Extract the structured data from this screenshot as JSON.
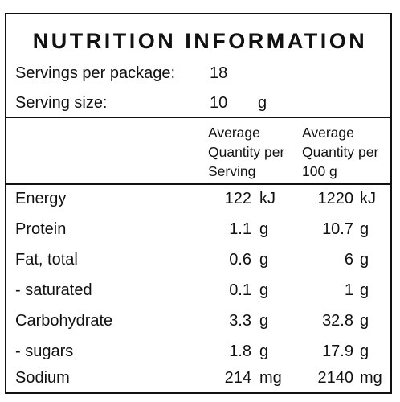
{
  "label": {
    "title": "NUTRITION INFORMATION",
    "servings_per_package": {
      "label": "Servings per package:",
      "value": "18"
    },
    "serving_size": {
      "label": "Serving size:",
      "value": "10",
      "unit": "g"
    },
    "columns": {
      "per_serving": [
        "Average",
        "Quantity per",
        "Serving"
      ],
      "per_100g": [
        "Average",
        "Quantity per",
        "100 g"
      ]
    },
    "rows": [
      {
        "name": "Energy",
        "serving": "122",
        "serving_unit": "kJ",
        "per100": "1220",
        "per100_unit": "kJ"
      },
      {
        "name": "Protein",
        "serving": "1.1",
        "serving_unit": "g",
        "per100": "10.7",
        "per100_unit": "g"
      },
      {
        "name": "Fat, total",
        "serving": "0.6",
        "serving_unit": "g",
        "per100": "6",
        "per100_unit": "g"
      },
      {
        "name": "- saturated",
        "serving": "0.1",
        "serving_unit": "g",
        "per100": "1",
        "per100_unit": "g"
      },
      {
        "name": "Carbohydrate",
        "serving": "3.3",
        "serving_unit": "g",
        "per100": "32.8",
        "per100_unit": "g"
      },
      {
        "name": "- sugars",
        "serving": "1.8",
        "serving_unit": "g",
        "per100": "17.9",
        "per100_unit": "g"
      },
      {
        "name": "Sodium",
        "serving": "214",
        "serving_unit": "mg",
        "per100": "2140",
        "per100_unit": "mg"
      }
    ]
  }
}
